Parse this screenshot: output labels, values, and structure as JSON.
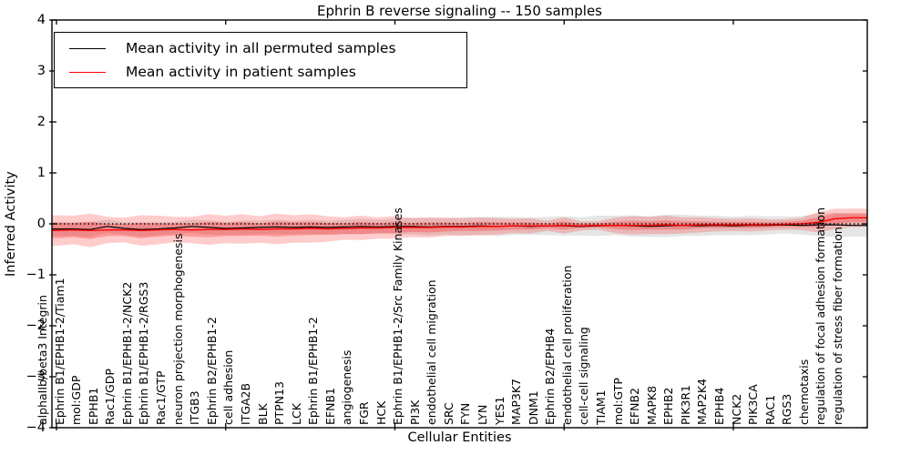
{
  "title": "Ephrin B reverse signaling -- 150 samples",
  "axes": {
    "xlabel": "Cellular Entities",
    "ylabel": "Inferred Activity"
  },
  "legend": {
    "items": [
      {
        "label": "Mean activity in all permuted samples",
        "color": "#000000"
      },
      {
        "label": "Mean activity in patient samples",
        "color": "#ff0000"
      }
    ]
  },
  "colors": {
    "axis": "#000000",
    "zero_line": "#000000",
    "permuted_line": "#000000",
    "patient_line": "#ff0000",
    "permuted_band": "#999999",
    "patient_band": "#ff0000",
    "background": "#ffffff"
  },
  "chart_data": {
    "type": "line",
    "title": "Ephrin B reverse signaling -- 150 samples",
    "xlabel": "Cellular Entities",
    "ylabel": "Inferred Activity",
    "ylim": [
      -4,
      4
    ],
    "yticks": [
      4,
      3,
      2,
      1,
      0,
      -1,
      -2,
      -3,
      -4
    ],
    "ytick_labels": [
      "4",
      "3",
      "2",
      "1",
      "0",
      "−1",
      "−2",
      "−3",
      "−4"
    ],
    "xtick_major_indices": [
      0,
      10,
      20,
      30,
      40
    ],
    "grid": false,
    "legend_position": "upper left",
    "zero_reference_line": 0,
    "categories": [
      "alphaIIb/beta3 Integrin",
      "Ephrin B1/EPHB1-2/Tiam1",
      "mol:GDP",
      "EPHB1",
      "Rac1/GDP",
      "Ephrin B1/EPHB1-2/NCK2",
      "Ephrin B1/EPHB1-2/RGS3",
      "Rac1/GTP",
      "neuron projection morphogenesis",
      "ITGB3",
      "Ephrin B2/EPHB1-2",
      "cell adhesion",
      "ITGA2B",
      "BLK",
      "PTPN13",
      "LCK",
      "Ephrin B1/EPHB1-2",
      "EFNB1",
      "angiogenesis",
      "FGR",
      "HCK",
      "Ephrin B1/EPHB1-2/Src Family Kinases",
      "PI3K",
      "endothelial cell migration",
      "SRC",
      "FYN",
      "LYN",
      "YES1",
      "MAP3K7",
      "DNM1",
      "Ephrin B2/EPHB4",
      "endothelial cell proliferation",
      "cell-cell signaling",
      "TIAM1",
      "mol:GTP",
      "EFNB2",
      "MAPK8",
      "EPHB2",
      "PIK3R1",
      "MAP2K4",
      "EPHB4",
      "NCK2",
      "PIK3CA",
      "RAC1",
      "RGS3",
      "chemotaxis",
      "regulation of focal adhesion formation",
      "regulation of stress fiber formation"
    ],
    "series": [
      {
        "name": "Mean activity in all permuted samples",
        "color": "#000000",
        "style": "solid",
        "values": [
          -0.1,
          -0.1,
          -0.11,
          -0.05,
          -0.09,
          -0.11,
          -0.1,
          -0.08,
          -0.05,
          -0.07,
          -0.09,
          -0.08,
          -0.07,
          -0.06,
          -0.07,
          -0.06,
          -0.07,
          -0.06,
          -0.05,
          -0.06,
          -0.05,
          -0.05,
          -0.06,
          -0.05,
          -0.05,
          -0.04,
          -0.05,
          -0.04,
          -0.05,
          -0.04,
          -0.04,
          -0.05,
          -0.04,
          -0.03,
          -0.04,
          -0.05,
          -0.04,
          -0.03,
          -0.04,
          -0.03,
          -0.04,
          -0.03,
          -0.03,
          -0.02,
          -0.03,
          -0.02,
          -0.02,
          -0.03
        ]
      },
      {
        "name": "Mean activity in patient samples",
        "color": "#ff0000",
        "style": "solid",
        "values": [
          -0.13,
          -0.12,
          -0.13,
          -0.12,
          -0.12,
          -0.13,
          -0.12,
          -0.11,
          -0.12,
          -0.11,
          -0.11,
          -0.1,
          -0.11,
          -0.1,
          -0.1,
          -0.09,
          -0.1,
          -0.09,
          -0.08,
          -0.08,
          -0.07,
          -0.07,
          -0.07,
          -0.06,
          -0.06,
          -0.05,
          -0.05,
          -0.04,
          -0.04,
          -0.04,
          -0.03,
          -0.04,
          -0.03,
          -0.03,
          -0.03,
          -0.03,
          -0.02,
          -0.03,
          -0.02,
          -0.02,
          -0.02,
          -0.02,
          -0.02,
          -0.01,
          0.0,
          0.03,
          0.1,
          0.12
        ]
      }
    ],
    "bands": [
      {
        "name": "permuted samples std envelope",
        "series": "Mean activity in all permuted samples",
        "color": "#000000",
        "opacity": 0.1,
        "halfwidths": [
          0.14,
          0.13,
          0.15,
          0.13,
          0.12,
          0.14,
          0.13,
          0.12,
          0.13,
          0.14,
          0.13,
          0.14,
          0.13,
          0.14,
          0.13,
          0.14,
          0.13,
          0.14,
          0.15,
          0.14,
          0.15,
          0.16,
          0.17,
          0.16,
          0.18,
          0.17,
          0.19,
          0.18,
          0.17,
          0.18,
          0.19,
          0.18,
          0.2,
          0.19,
          0.21,
          0.2,
          0.22,
          0.21,
          0.2,
          0.19,
          0.18,
          0.19,
          0.18,
          0.17,
          0.18,
          0.22,
          0.24,
          0.22
        ]
      },
      {
        "name": "patient samples std envelope (outer)",
        "series": "Mean activity in patient samples",
        "color": "#ff0000",
        "opacity": 0.2,
        "halfwidths": [
          0.3,
          0.28,
          0.33,
          0.26,
          0.24,
          0.3,
          0.28,
          0.25,
          0.26,
          0.3,
          0.27,
          0.29,
          0.26,
          0.3,
          0.27,
          0.28,
          0.25,
          0.22,
          0.24,
          0.21,
          0.22,
          0.19,
          0.2,
          0.18,
          0.17,
          0.18,
          0.16,
          0.14,
          0.15,
          0.1,
          0.16,
          0.09,
          0.08,
          0.15,
          0.18,
          0.17,
          0.18,
          0.16,
          0.15,
          0.13,
          0.12,
          0.13,
          0.11,
          0.1,
          0.12,
          0.2,
          0.2,
          0.18
        ]
      },
      {
        "name": "patient samples std envelope (inner)",
        "series": "Mean activity in patient samples",
        "color": "#ff0000",
        "opacity": 0.25,
        "halfwidths": [
          0.15,
          0.14,
          0.17,
          0.12,
          0.12,
          0.15,
          0.13,
          0.12,
          0.13,
          0.15,
          0.13,
          0.14,
          0.12,
          0.15,
          0.13,
          0.13,
          0.12,
          0.11,
          0.12,
          0.1,
          0.11,
          0.09,
          0.1,
          0.09,
          0.08,
          0.09,
          0.08,
          0.07,
          0.07,
          0.05,
          0.08,
          0.04,
          0.04,
          0.07,
          0.09,
          0.08,
          0.09,
          0.08,
          0.07,
          0.06,
          0.06,
          0.06,
          0.05,
          0.05,
          0.06,
          0.1,
          0.1,
          0.09
        ]
      }
    ]
  }
}
